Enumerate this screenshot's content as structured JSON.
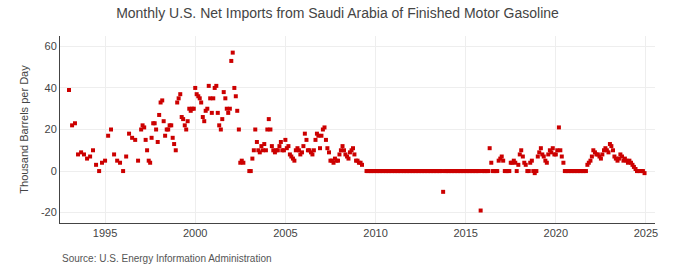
{
  "chart_data": {
    "type": "scatter",
    "title": "Monthly U.S. Net Imports from Saudi Arabia of Finished Motor Gasoline",
    "ylabel": "Thousand Barrels per Day",
    "annotations": [
      "Source: U.S. Energy Information Administration"
    ],
    "color": "#cc0000",
    "marker": "square",
    "grid": true,
    "xlim": [
      1992.5,
      2025.5
    ],
    "ylim": [
      -25,
      65
    ],
    "xticks": [
      1995,
      2000,
      2005,
      2010,
      2015,
      2020,
      2025
    ],
    "yticks": [
      -20,
      0,
      20,
      40,
      60
    ],
    "x": [
      1993.0,
      1993.17,
      1993.33,
      1993.5,
      1993.67,
      1993.83,
      1994.0,
      1994.17,
      1994.33,
      1994.5,
      1994.67,
      1994.83,
      1995.0,
      1995.17,
      1995.33,
      1995.5,
      1995.67,
      1995.83,
      1996.0,
      1996.17,
      1996.33,
      1996.5,
      1996.67,
      1996.83,
      1997.0,
      1997.08,
      1997.17,
      1997.25,
      1997.33,
      1997.42,
      1997.5,
      1997.58,
      1997.67,
      1997.75,
      1997.83,
      1997.92,
      1998.0,
      1998.08,
      1998.17,
      1998.25,
      1998.33,
      1998.42,
      1998.5,
      1998.58,
      1998.67,
      1998.75,
      1998.83,
      1998.92,
      1999.0,
      1999.08,
      1999.17,
      1999.25,
      1999.33,
      1999.42,
      1999.5,
      1999.58,
      1999.67,
      1999.75,
      1999.83,
      1999.92,
      2000.0,
      2000.08,
      2000.17,
      2000.25,
      2000.33,
      2000.42,
      2000.5,
      2000.58,
      2000.67,
      2000.75,
      2000.83,
      2000.92,
      2001.0,
      2001.08,
      2001.17,
      2001.25,
      2001.33,
      2001.42,
      2001.5,
      2001.58,
      2001.67,
      2001.75,
      2001.83,
      2001.92,
      2002.0,
      2002.08,
      2002.17,
      2002.25,
      2002.33,
      2002.42,
      2002.5,
      2002.58,
      2002.67,
      2003.0,
      2003.08,
      2003.17,
      2003.25,
      2003.33,
      2003.42,
      2003.5,
      2003.58,
      2003.67,
      2003.75,
      2003.83,
      2003.92,
      2004.0,
      2004.08,
      2004.17,
      2004.25,
      2004.33,
      2004.42,
      2004.5,
      2004.58,
      2004.67,
      2004.75,
      2004.83,
      2004.92,
      2005.0,
      2005.08,
      2005.17,
      2005.25,
      2005.33,
      2005.42,
      2005.5,
      2005.58,
      2005.67,
      2005.75,
      2005.83,
      2005.92,
      2006.0,
      2006.08,
      2006.17,
      2006.25,
      2006.33,
      2006.42,
      2006.5,
      2006.58,
      2006.67,
      2006.75,
      2006.83,
      2006.92,
      2007.0,
      2007.08,
      2007.17,
      2007.25,
      2007.33,
      2007.42,
      2007.5,
      2007.58,
      2007.67,
      2007.75,
      2007.83,
      2007.92,
      2008.0,
      2008.08,
      2008.17,
      2008.25,
      2008.33,
      2008.42,
      2008.5,
      2008.58,
      2008.67,
      2008.75,
      2008.83,
      2008.92,
      2009.0,
      2009.08,
      2009.17,
      2009.25,
      2009.5,
      2009.58,
      2009.67,
      2009.75,
      2009.83,
      2009.92,
      2010.0,
      2010.08,
      2010.17,
      2010.25,
      2010.33,
      2010.42,
      2010.5,
      2010.58,
      2010.67,
      2010.75,
      2010.83,
      2010.92,
      2011.0,
      2011.08,
      2011.17,
      2011.25,
      2011.33,
      2011.42,
      2011.5,
      2011.58,
      2011.67,
      2011.75,
      2011.83,
      2011.92,
      2012.0,
      2012.08,
      2012.17,
      2012.25,
      2012.33,
      2012.42,
      2012.5,
      2012.58,
      2012.67,
      2012.75,
      2012.83,
      2012.92,
      2013.0,
      2013.08,
      2013.17,
      2013.25,
      2013.33,
      2013.42,
      2013.5,
      2013.58,
      2013.67,
      2013.75,
      2013.83,
      2013.92,
      2014.0,
      2014.08,
      2014.17,
      2014.25,
      2014.33,
      2014.42,
      2014.5,
      2014.58,
      2014.67,
      2014.75,
      2014.83,
      2014.92,
      2015.0,
      2015.08,
      2015.17,
      2015.25,
      2015.33,
      2015.42,
      2015.5,
      2015.58,
      2015.67,
      2015.75,
      2015.83,
      2015.92,
      2016.0,
      2016.08,
      2016.17,
      2016.25,
      2016.33,
      2016.42,
      2016.5,
      2016.58,
      2016.67,
      2016.75,
      2016.83,
      2016.92,
      2017.0,
      2017.08,
      2017.17,
      2017.25,
      2017.33,
      2017.42,
      2017.5,
      2017.58,
      2017.67,
      2017.75,
      2017.83,
      2017.92,
      2018.0,
      2018.08,
      2018.17,
      2018.25,
      2018.33,
      2018.42,
      2018.5,
      2018.58,
      2018.67,
      2018.75,
      2018.83,
      2018.92,
      2019.0,
      2019.08,
      2019.17,
      2019.25,
      2019.33,
      2019.42,
      2019.5,
      2019.58,
      2019.67,
      2019.75,
      2019.83,
      2019.92,
      2020.0,
      2020.08,
      2020.17,
      2020.25,
      2020.33,
      2020.42,
      2020.5,
      2020.58,
      2020.67,
      2020.75,
      2020.83,
      2020.92,
      2021.0,
      2021.08,
      2021.17,
      2021.25,
      2021.33,
      2021.42,
      2021.5,
      2021.58,
      2021.67,
      2021.75,
      2021.83,
      2021.92,
      2022.0,
      2022.08,
      2022.17,
      2022.25,
      2022.33,
      2022.42,
      2022.5,
      2022.58,
      2022.67,
      2022.75,
      2022.83,
      2022.92,
      2023.0,
      2023.08,
      2023.17,
      2023.25,
      2023.33,
      2023.42,
      2023.5,
      2023.58,
      2023.67,
      2023.75,
      2023.83,
      2023.92,
      2024.0,
      2024.08,
      2024.17,
      2024.25,
      2024.33,
      2024.42,
      2024.5,
      2024.58,
      2024.67,
      2024.75,
      2024.83,
      2024.92
    ],
    "values": [
      39,
      22,
      23,
      8,
      9,
      8,
      6,
      7,
      10,
      3,
      0,
      4,
      5,
      17,
      20,
      8,
      5,
      4,
      0,
      7,
      18,
      16,
      15,
      5,
      20,
      22,
      21,
      15,
      10,
      5,
      4,
      16,
      23,
      23,
      20,
      14,
      27,
      33,
      34,
      24,
      17,
      20,
      20,
      22,
      22,
      16,
      13,
      10,
      33,
      35,
      37,
      26,
      25,
      22,
      20,
      24,
      30,
      29,
      30,
      30,
      40,
      37,
      36,
      35,
      33,
      26,
      24,
      29,
      30,
      41,
      35,
      28,
      35,
      40,
      41,
      28,
      22,
      20,
      25,
      38,
      35,
      30,
      28,
      30,
      53,
      57,
      40,
      36,
      29,
      20,
      4,
      5,
      4,
      0,
      0,
      6,
      10,
      20,
      14,
      10,
      9,
      12,
      10,
      13,
      10,
      20,
      25,
      20,
      12,
      10,
      9,
      10,
      10,
      12,
      14,
      10,
      10,
      15,
      11,
      12,
      8,
      7,
      6,
      5,
      10,
      11,
      10,
      8,
      9,
      12,
      18,
      15,
      10,
      10,
      9,
      8,
      10,
      15,
      18,
      17,
      11,
      17,
      20,
      21,
      15,
      11,
      9,
      5,
      5,
      4,
      6,
      5,
      5,
      8,
      10,
      12,
      10,
      8,
      7,
      6,
      9,
      10,
      11,
      8,
      5,
      5,
      4,
      4,
      3,
      0,
      0,
      0,
      0,
      0,
      0,
      0,
      0,
      0,
      0,
      0,
      0,
      0,
      0,
      0,
      0,
      0,
      0,
      0,
      0,
      0,
      0,
      0,
      0,
      0,
      0,
      0,
      0,
      0,
      0,
      0,
      0,
      0,
      0,
      0,
      0,
      0,
      0,
      0,
      0,
      0,
      0,
      0,
      0,
      0,
      0,
      0,
      0,
      0,
      0,
      0,
      -10,
      0,
      0,
      0,
      0,
      0,
      0,
      0,
      0,
      0,
      0,
      0,
      0,
      0,
      0,
      0,
      0,
      0,
      0,
      0,
      0,
      0,
      0,
      0,
      0,
      -19,
      0,
      0,
      0,
      0,
      0,
      11,
      4,
      0,
      0,
      0,
      0,
      5,
      6,
      7,
      5,
      0,
      0,
      0,
      0,
      4,
      4,
      5,
      4,
      0,
      3,
      8,
      10,
      7,
      4,
      3,
      0,
      0,
      4,
      5,
      0,
      -1,
      0,
      7,
      9,
      11,
      8,
      7,
      5,
      4,
      8,
      10,
      9,
      11,
      8,
      8,
      10,
      21,
      10,
      7,
      4,
      0,
      0,
      0,
      0,
      0,
      0,
      0,
      0,
      0,
      0,
      0,
      0,
      0,
      0,
      0,
      3,
      4,
      5,
      7,
      10,
      9,
      8,
      8,
      7,
      6,
      8,
      10,
      11,
      10,
      9,
      13,
      12,
      10,
      7,
      6,
      5,
      6,
      8,
      7,
      5,
      6,
      5,
      4,
      5,
      4,
      3,
      2,
      1,
      0,
      0,
      0,
      0,
      0,
      -1
    ]
  }
}
